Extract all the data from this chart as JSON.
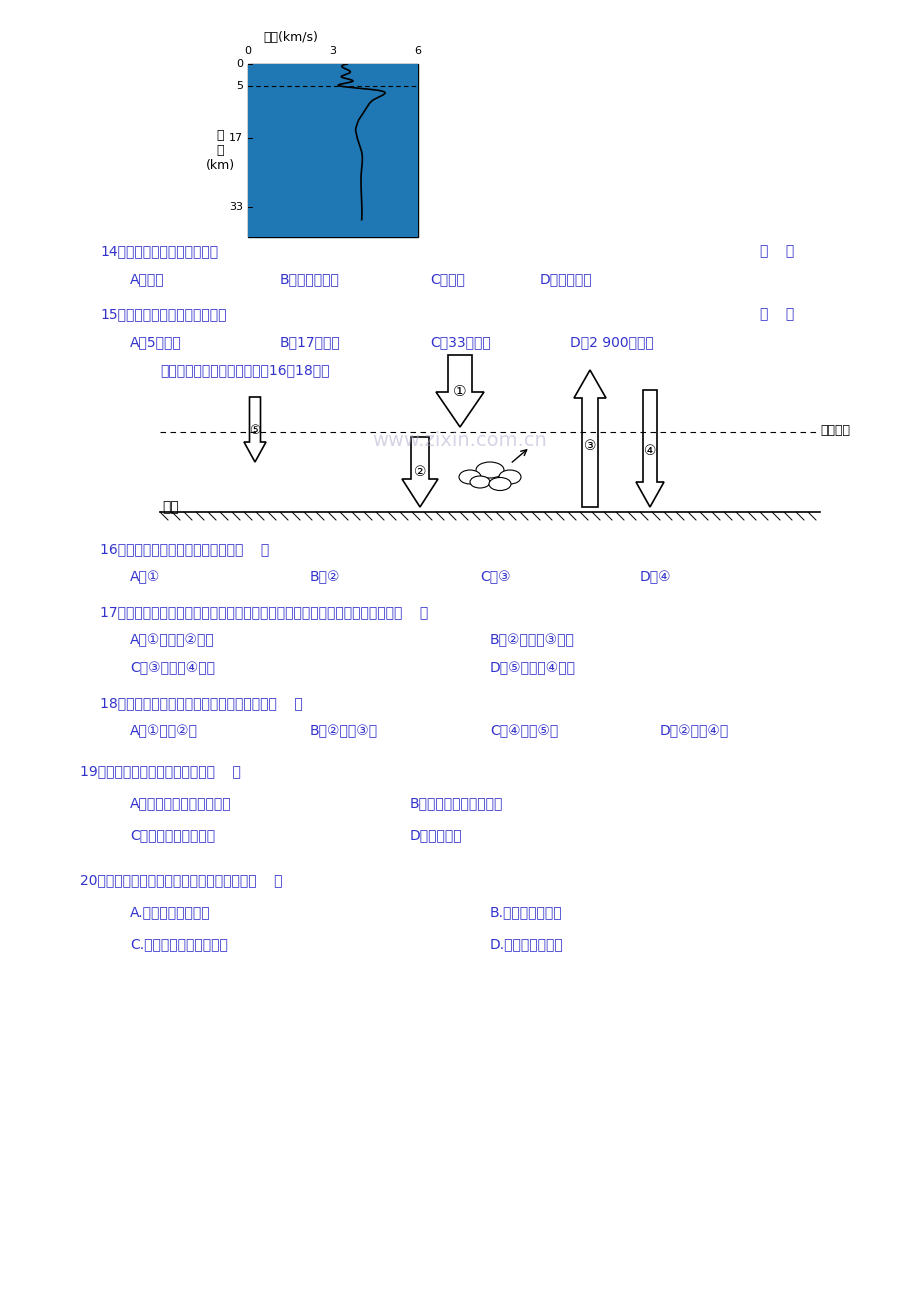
{
  "bg_color": "#ffffff",
  "text_color": "#3333cc",
  "black": "#000000",
  "title_font": 11,
  "body_font": 10,
  "small_font": 9,
  "graph_title": "速度(km/s)",
  "graph_xlabel_values": [
    "0",
    "3",
    "6"
  ],
  "graph_ylabel_values": [
    "0",
    "5",
    "17",
    "33"
  ],
  "graph_ylabel_label": "深\n度\n(km)",
  "q14": "14．图中曲线表示的地震波是",
  "q14_bracket": "（    ）",
  "q14_A": "A．纵波",
  "q14_B": "B．纵波和横波",
  "q14_C": "C．横波",
  "q14_D": "D．无法判断",
  "q15": "15．该地莫霍界面大约位于地下",
  "q15_bracket": "（    ）",
  "q15_A": "A．5千米处",
  "q15_B": "B．17千米处",
  "q15_C": "C．33千米处",
  "q15_D": "D．2 900千米处",
  "q15_note": "读大气热量交换过程图，回答16～18题。",
  "atm_label_upper": "大气上界",
  "atm_label_ground": "地面",
  "atm_watermark": "www.zixin.com.cn",
  "q16": "16．图中序号代表大气逆辐射的是（    ）",
  "q16_A": "A．①",
  "q16_B": "B．②",
  "q16_C": "C．③",
  "q16_D": "D．④",
  "q17": "17．引起全球气温升高的主要温室气体是二氧化碳，二氧化碳浓度增大会导致（    ）",
  "q17_A": "A．①增强，②增强",
  "q17_B": "B．②减弱，③减弱",
  "q17_C": "C．③增强，④增强",
  "q17_D": "D．⑤减弱，④增强",
  "q18": "18．我国西北地区昼夜温差大的主要原因是（    ）",
  "q18_A": "A．①强，②强",
  "q18_B": "B．②强，③弱",
  "q18_C": "C．④强，⑤强",
  "q18_D": "D．②强，④弱",
  "q19": "19、引起大气运动的根本原因是（    ）",
  "q19_A": "A、高空和地面温度的差异",
  "q19_B": "B、高低纬间的热量差异",
  "q19_C": "C、海陆热力性质差异",
  "q19_D": "D、气压差异",
  "q20": "20、在农田中释放人造烟雾防冻害的原理是（    ）",
  "q20_A": "A.使大气逆辐射增强",
  "q20_B": "B.能增加地面辐射",
  "q20_C": "C.烟雾温度比空气温度高",
  "q20_D": "D.烟雾能阻挡寒流"
}
